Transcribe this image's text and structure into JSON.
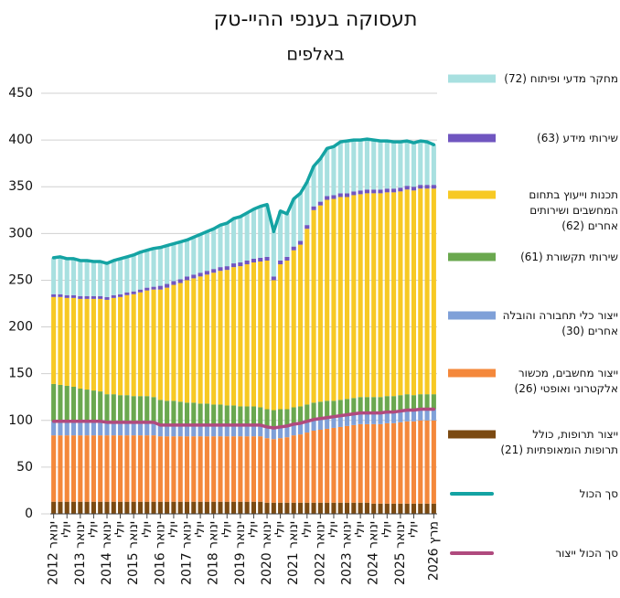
{
  "chart_data": {
    "type": "bar",
    "stacked": true,
    "title": "תעסוקה בענפי ההיי-טק",
    "subtitle": "באלפים",
    "grid": true,
    "ylim": [
      0,
      450
    ],
    "yticks": [
      0,
      50,
      100,
      150,
      200,
      250,
      300,
      350,
      400,
      450
    ],
    "categories": [
      "ינואר 2012",
      null,
      "יולי",
      null,
      "ינואר 2013",
      null,
      "יולי",
      null,
      "ינואר 2014",
      null,
      "יולי",
      null,
      "ינואר 2015",
      null,
      "יולי",
      null,
      "ינואר 2016",
      null,
      "יולי",
      null,
      "ינואר 2017",
      null,
      "יולי",
      null,
      "ינואר 2018",
      null,
      "יולי",
      null,
      "ינואר 2019",
      null,
      "יולי",
      null,
      "ינואר 2020",
      null,
      "יולי",
      null,
      "ינואר 2021",
      null,
      "יולי",
      null,
      "ינואר 2022",
      null,
      "יולי",
      null,
      "ינואר 2023",
      null,
      "יולי",
      null,
      "ינואר 2024",
      null,
      "יולי",
      null,
      "ינואר 2025",
      null,
      "יולי",
      null,
      null,
      "מרץ 2026"
    ],
    "series": [
      {
        "name": "ייצור תרופות, כולל תרופות הומאופתיות (21)",
        "color": "#7b4a12",
        "values": [
          13,
          13,
          13,
          13,
          13,
          13,
          13,
          13,
          13,
          13,
          13,
          13,
          13,
          13,
          13,
          13,
          13,
          13,
          13,
          13,
          13,
          13,
          13,
          13,
          13,
          13,
          13,
          13,
          13,
          13,
          13,
          13,
          12,
          12,
          12,
          12,
          12,
          12,
          12,
          12,
          12,
          12,
          12,
          12,
          12,
          12,
          12,
          12,
          11,
          11,
          11,
          11,
          11,
          11,
          11,
          11,
          11,
          11
        ]
      },
      {
        "name": "ייצור מחשבים, מכשור אלקטרוני ואופטי (26)",
        "color": "#f4883b",
        "values": [
          71,
          71,
          71,
          71,
          71,
          71,
          71,
          71,
          71,
          71,
          71,
          71,
          71,
          71,
          71,
          71,
          70,
          70,
          70,
          70,
          70,
          70,
          70,
          70,
          70,
          70,
          70,
          70,
          70,
          70,
          70,
          70,
          69,
          68,
          69,
          70,
          72,
          73,
          75,
          77,
          78,
          79,
          80,
          81,
          82,
          83,
          84,
          84,
          85,
          85,
          86,
          86,
          87,
          88,
          88,
          89,
          89,
          89
        ]
      },
      {
        "name": "ייצור כלי תחבורה והובלה אחרים (30)",
        "color": "#7fa0d8",
        "values": [
          15,
          15,
          15,
          15,
          15,
          15,
          15,
          15,
          14,
          14,
          14,
          14,
          14,
          14,
          14,
          14,
          12,
          12,
          12,
          12,
          12,
          12,
          12,
          12,
          12,
          12,
          12,
          12,
          12,
          12,
          12,
          12,
          12,
          12,
          12,
          12,
          12,
          12,
          12,
          12,
          12,
          12,
          12,
          12,
          12,
          12,
          12,
          12,
          12,
          12,
          12,
          12,
          12,
          12,
          12,
          12,
          12,
          12
        ]
      },
      {
        "name": "שירותי תקשורת (61)",
        "color": "#6aa84f",
        "values": [
          40,
          39,
          38,
          37,
          35,
          34,
          33,
          32,
          30,
          30,
          29,
          29,
          28,
          28,
          28,
          27,
          27,
          26,
          26,
          25,
          24,
          24,
          23,
          23,
          22,
          22,
          21,
          21,
          20,
          20,
          20,
          19,
          19,
          19,
          19,
          18,
          18,
          18,
          18,
          18,
          18,
          18,
          17,
          17,
          17,
          17,
          17,
          17,
          17,
          17,
          17,
          17,
          17,
          17,
          16,
          16,
          16,
          16
        ]
      },
      {
        "name": "תכנות וייעוץ בתחום המחשבים ושירותים אחרים (62)",
        "color": "#f7c924",
        "values": [
          93,
          94,
          94,
          95,
          96,
          97,
          98,
          99,
          101,
          103,
          105,
          107,
          109,
          111,
          113,
          115,
          118,
          121,
          124,
          127,
          131,
          133,
          136,
          138,
          141,
          143,
          145,
          148,
          150,
          152,
          154,
          156,
          159,
          139,
          155,
          159,
          168,
          173,
          188,
          206,
          210,
          215,
          216,
          217,
          216,
          217,
          217,
          218,
          218,
          218,
          218,
          218,
          218,
          219,
          219,
          220,
          220,
          220
        ]
      },
      {
        "name": "שירותי מידע (63)",
        "color": "#7056c0",
        "values": [
          3,
          3,
          3,
          3,
          3,
          3,
          3,
          3,
          3,
          3,
          3,
          3,
          3,
          3,
          3,
          3,
          4,
          4,
          4,
          4,
          4,
          4,
          4,
          4,
          4,
          4,
          4,
          4,
          4,
          4,
          4,
          4,
          4,
          4,
          4,
          4,
          4,
          4,
          4,
          4,
          4,
          4,
          4,
          4,
          4,
          4,
          4,
          4,
          4,
          4,
          4,
          4,
          4,
          4,
          4,
          4,
          4,
          4
        ]
      },
      {
        "name": "מחקר מדעי ופיתוח (72)",
        "color": "#a8e0e0",
        "values": [
          39,
          40,
          39,
          39,
          38,
          38,
          37,
          37,
          36,
          37,
          38,
          38,
          39,
          40,
          40,
          41,
          41,
          41,
          40,
          40,
          39,
          40,
          41,
          42,
          43,
          45,
          46,
          48,
          49,
          51,
          53,
          55,
          56,
          48,
          53,
          46,
          51,
          51,
          46,
          43,
          46,
          51,
          52,
          55,
          56,
          55,
          54,
          54,
          53,
          52,
          51,
          50,
          49,
          48,
          47,
          47,
          46,
          43
        ]
      },
      {
        "name": "סך הכול",
        "type": "line",
        "color": "#14a3a3",
        "values": [
          274,
          275,
          273,
          273,
          271,
          271,
          270,
          270,
          268,
          271,
          273,
          275,
          277,
          280,
          282,
          284,
          285,
          287,
          289,
          291,
          293,
          296,
          299,
          302,
          305,
          309,
          311,
          316,
          318,
          322,
          326,
          329,
          331,
          302,
          324,
          321,
          337,
          343,
          355,
          372,
          380,
          391,
          393,
          398,
          399,
          400,
          400,
          401,
          400,
          399,
          399,
          398,
          398,
          399,
          397,
          399,
          398,
          395
        ]
      },
      {
        "name": "סך הכול ייצור",
        "type": "line",
        "color": "#b04a7e",
        "values": [
          99,
          99,
          99,
          99,
          99,
          99,
          99,
          99,
          98,
          98,
          98,
          98,
          98,
          98,
          98,
          98,
          95,
          95,
          95,
          95,
          95,
          95,
          95,
          95,
          95,
          95,
          95,
          95,
          95,
          95,
          95,
          95,
          93,
          92,
          93,
          94,
          96,
          97,
          99,
          101,
          102,
          103,
          104,
          105,
          106,
          107,
          108,
          108,
          108,
          108,
          109,
          109,
          110,
          111,
          111,
          112,
          112,
          112
        ]
      }
    ]
  }
}
